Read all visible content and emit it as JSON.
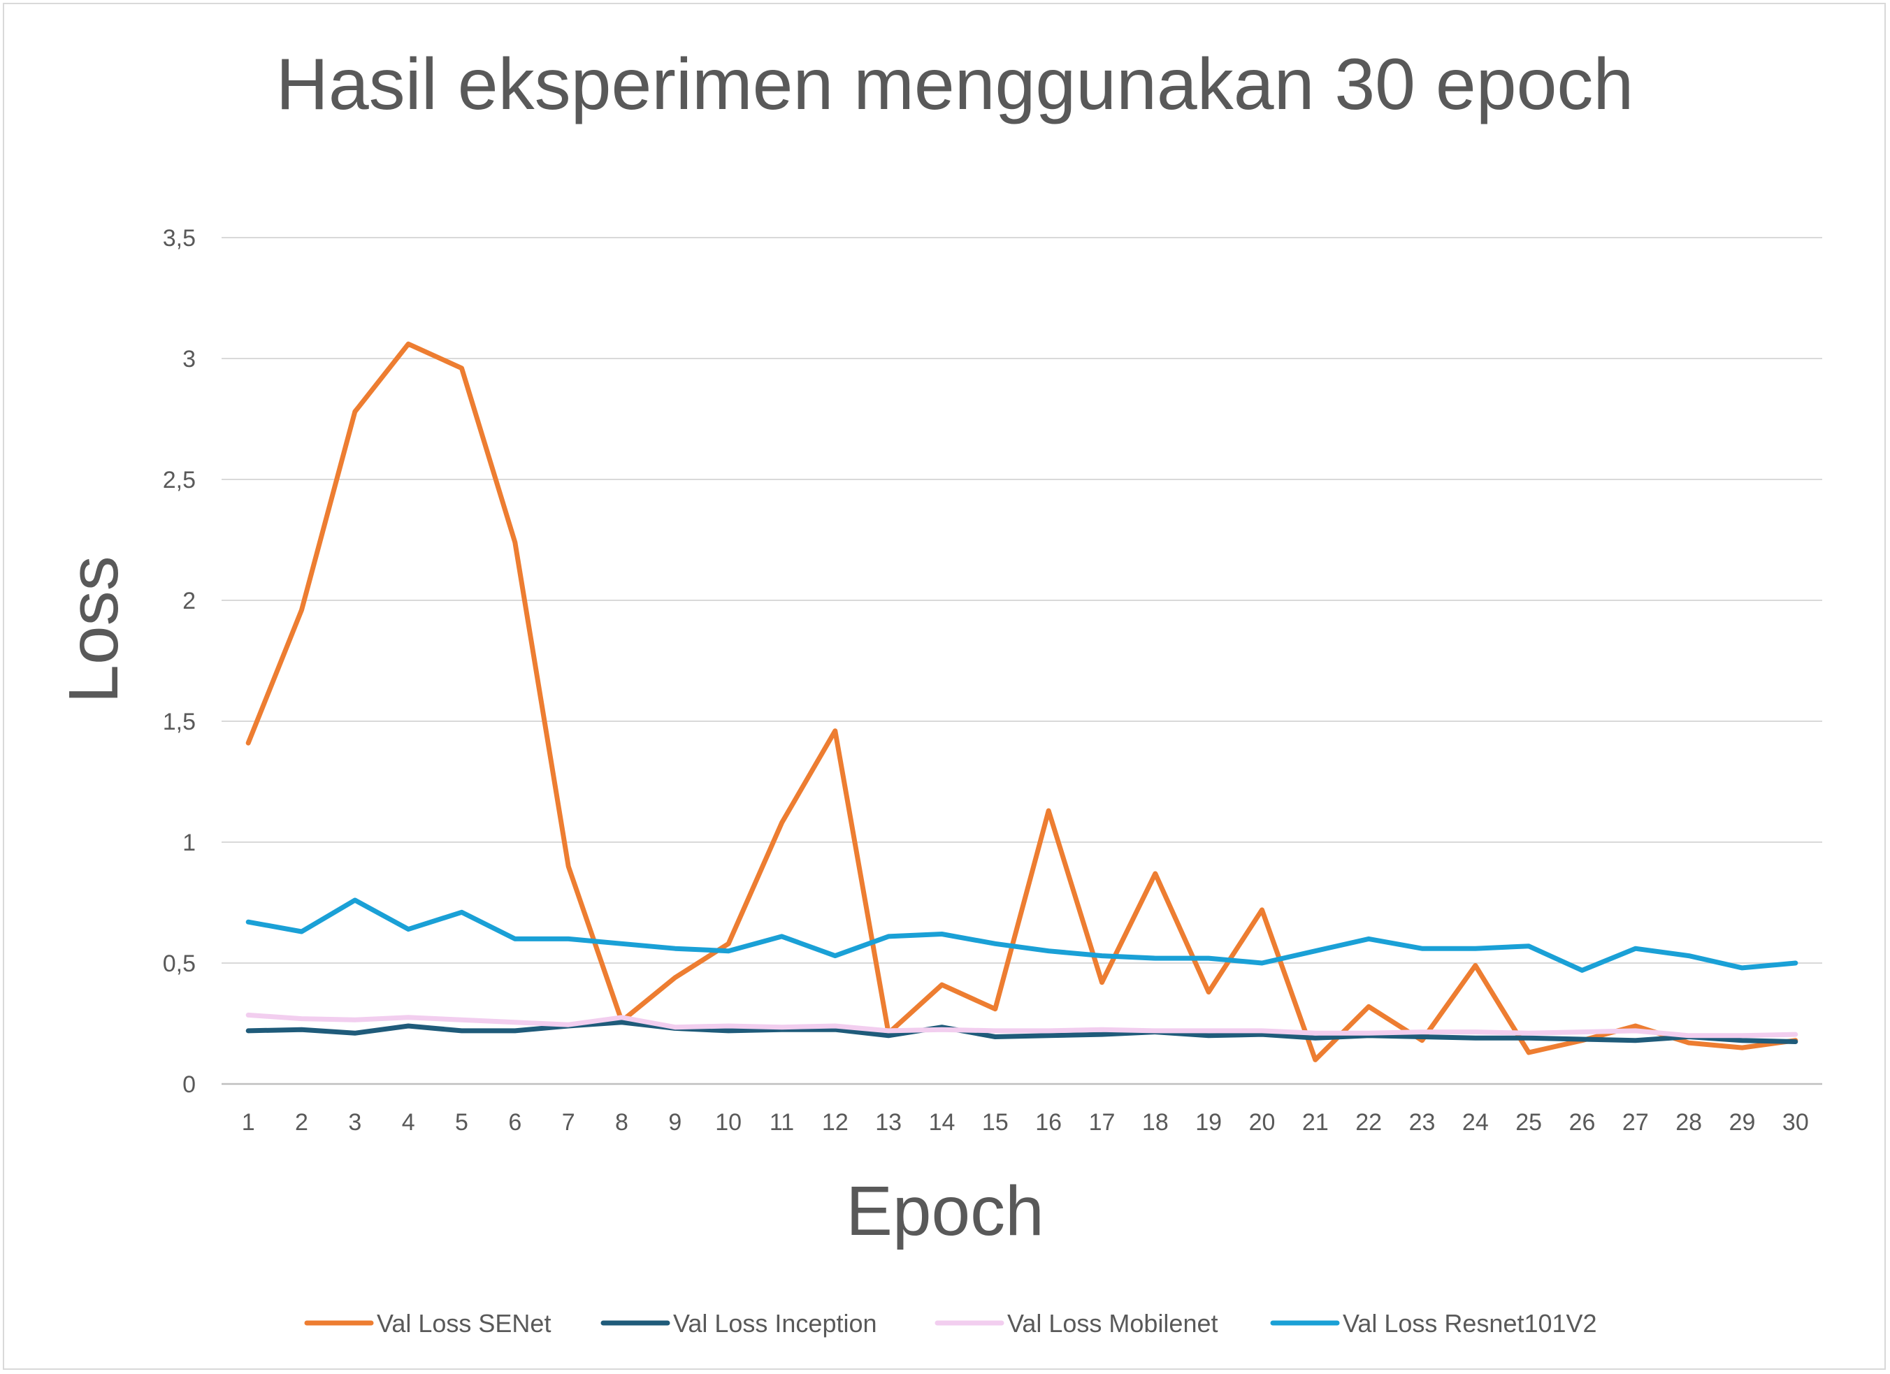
{
  "chart_data": {
    "type": "line",
    "title": "Hasil eksperimen menggunakan 30 epoch",
    "xlabel": "Epoch",
    "ylabel": "Loss",
    "ylim": [
      0,
      3.5
    ],
    "yticks": [
      "0",
      "0,5",
      "1",
      "1,5",
      "2",
      "2,5",
      "3",
      "3,5"
    ],
    "grid": true,
    "legend_position": "bottom",
    "x": [
      "1",
      "2",
      "3",
      "4",
      "5",
      "6",
      "7",
      "8",
      "9",
      "10",
      "11",
      "12",
      "13",
      "14",
      "15",
      "16",
      "17",
      "18",
      "19",
      "20",
      "21",
      "22",
      "23",
      "24",
      "25",
      "26",
      "27",
      "28",
      "29",
      "30"
    ],
    "series": [
      {
        "name": "Val Loss SENet",
        "color": "#ED7D31",
        "values": [
          1.41,
          1.96,
          2.78,
          3.06,
          2.96,
          2.24,
          0.9,
          0.26,
          0.44,
          0.58,
          1.08,
          1.46,
          0.21,
          0.41,
          0.31,
          1.13,
          0.42,
          0.87,
          0.38,
          0.72,
          0.1,
          0.32,
          0.18,
          0.49,
          0.13,
          0.18,
          0.24,
          0.17,
          0.15,
          0.18
        ]
      },
      {
        "name": "Val Loss Inception",
        "color": "#1F5B7A",
        "values": [
          0.22,
          0.225,
          0.21,
          0.24,
          0.22,
          0.22,
          0.24,
          0.255,
          0.23,
          0.22,
          0.225,
          0.225,
          0.2,
          0.235,
          0.195,
          0.2,
          0.205,
          0.215,
          0.2,
          0.205,
          0.19,
          0.2,
          0.195,
          0.19,
          0.19,
          0.185,
          0.18,
          0.195,
          0.18,
          0.175
        ]
      },
      {
        "name": "Val Loss Mobilenet",
        "color": "#F2CEEF",
        "values": [
          0.285,
          0.27,
          0.265,
          0.275,
          0.265,
          0.255,
          0.245,
          0.275,
          0.235,
          0.24,
          0.235,
          0.24,
          0.22,
          0.225,
          0.22,
          0.22,
          0.225,
          0.22,
          0.22,
          0.22,
          0.21,
          0.21,
          0.215,
          0.215,
          0.21,
          0.215,
          0.22,
          0.2,
          0.2,
          0.205
        ]
      },
      {
        "name": "Val Loss Resnet101V2",
        "color": "#1AA0D6",
        "values": [
          0.67,
          0.63,
          0.76,
          0.64,
          0.71,
          0.6,
          0.6,
          0.58,
          0.56,
          0.55,
          0.61,
          0.53,
          0.61,
          0.62,
          0.58,
          0.55,
          0.53,
          0.52,
          0.52,
          0.5,
          0.55,
          0.6,
          0.56,
          0.56,
          0.57,
          0.47,
          0.56,
          0.53,
          0.48,
          0.5
        ]
      }
    ]
  }
}
